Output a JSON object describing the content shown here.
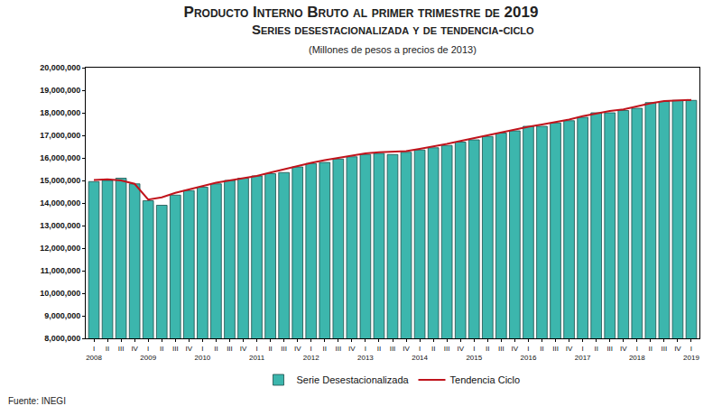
{
  "chart_data": {
    "type": "bar",
    "title": "Producto Interno Bruto al primer trimestre de 2019",
    "subtitle": "Series desestacionalizada y de tendencia-ciclo",
    "annotations": [
      "(Millones de pesos a precios de 2013)",
      "Fuente: INEGI"
    ],
    "categories": [
      "I",
      "II",
      "III",
      "IV",
      "I",
      "II",
      "III",
      "IV",
      "I",
      "II",
      "III",
      "IV",
      "I",
      "II",
      "III",
      "IV",
      "I",
      "II",
      "III",
      "IV",
      "I",
      "II",
      "III",
      "IV",
      "I",
      "II",
      "III",
      "IV",
      "I",
      "II",
      "III",
      "IV",
      "I",
      "II",
      "III",
      "IV",
      "I",
      "II",
      "III",
      "IV",
      "I",
      "II",
      "III",
      "IV",
      "I"
    ],
    "years": [
      "2008",
      null,
      null,
      null,
      "2009",
      null,
      null,
      null,
      "2010",
      null,
      null,
      null,
      "2011",
      null,
      null,
      null,
      "2012",
      null,
      null,
      null,
      "2013",
      null,
      null,
      null,
      "2014",
      null,
      null,
      null,
      "2015",
      null,
      null,
      null,
      "2016",
      null,
      null,
      null,
      "2017",
      null,
      null,
      null,
      "2018",
      null,
      null,
      null,
      "2019"
    ],
    "series": [
      {
        "name": "Serie Desestacionalizada",
        "type": "bar",
        "color": "#3cb6ad",
        "values": [
          14950000,
          15000000,
          15100000,
          14850000,
          14100000,
          13900000,
          14350000,
          14550000,
          14700000,
          14850000,
          15000000,
          15100000,
          15200000,
          15300000,
          15350000,
          15600000,
          15750000,
          15800000,
          15950000,
          16050000,
          16150000,
          16200000,
          16150000,
          16250000,
          16350000,
          16450000,
          16550000,
          16700000,
          16800000,
          16950000,
          17100000,
          17200000,
          17400000,
          17400000,
          17550000,
          17650000,
          17800000,
          18000000,
          18000000,
          18100000,
          18200000,
          18450000,
          18500000,
          18550000,
          18550000
        ]
      },
      {
        "name": "Tendencia Ciclo",
        "type": "line",
        "color": "#c0141c",
        "values": [
          15020000,
          15050000,
          15000000,
          14850000,
          14150000,
          14250000,
          14450000,
          14600000,
          14750000,
          14900000,
          15000000,
          15100000,
          15200000,
          15350000,
          15500000,
          15650000,
          15780000,
          15900000,
          16000000,
          16100000,
          16200000,
          16250000,
          16270000,
          16300000,
          16400000,
          16500000,
          16620000,
          16750000,
          16880000,
          17000000,
          17120000,
          17250000,
          17380000,
          17480000,
          17580000,
          17700000,
          17850000,
          17980000,
          18080000,
          18150000,
          18300000,
          18420000,
          18520000,
          18550000,
          18570000
        ]
      }
    ],
    "ylim": [
      8000000,
      20000000
    ],
    "yticks": [
      {
        "value": 8000000,
        "label": "8,000,000"
      },
      {
        "value": 9000000,
        "label": "9,000,000"
      },
      {
        "value": 10000000,
        "label": "10,000,000"
      },
      {
        "value": 11000000,
        "label": "11,000,000"
      },
      {
        "value": 12000000,
        "label": "12,000,000"
      },
      {
        "value": 13000000,
        "label": "13,000,000"
      },
      {
        "value": 14000000,
        "label": "14,000,000"
      },
      {
        "value": 15000000,
        "label": "15,000,000"
      },
      {
        "value": 16000000,
        "label": "16,000,000"
      },
      {
        "value": 17000000,
        "label": "17,000,000"
      },
      {
        "value": 18000000,
        "label": "18,000,000"
      },
      {
        "value": 19000000,
        "label": "19,000,000"
      },
      {
        "value": 20000000,
        "label": "20,000,000"
      }
    ],
    "grid": false,
    "legend": "bottom"
  }
}
